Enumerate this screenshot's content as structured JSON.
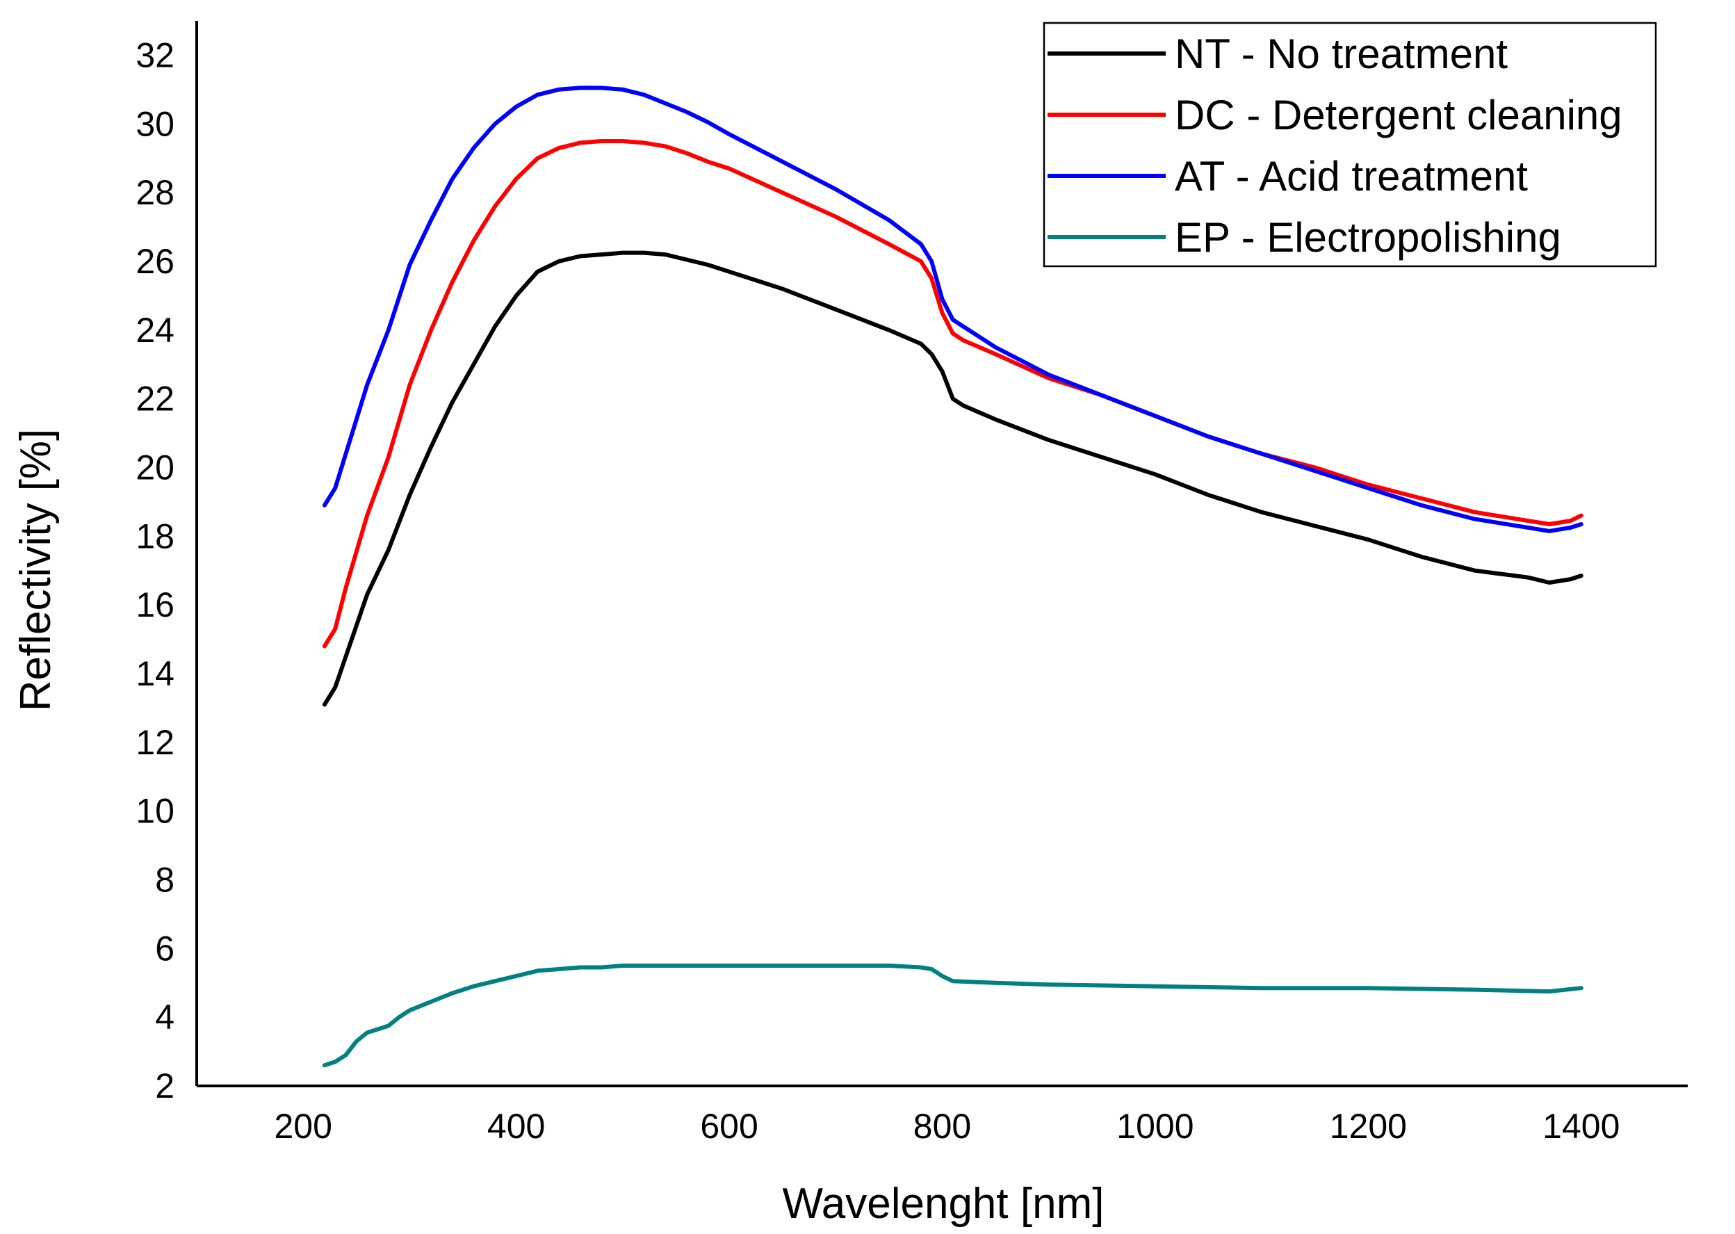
{
  "chart_data": {
    "type": "line",
    "title": "",
    "xlabel": "Wavelenght [nm]",
    "ylabel": "Reflectivity [%]",
    "xlim": [
      100,
      1500
    ],
    "ylim": [
      2,
      33
    ],
    "xticks": [
      200,
      400,
      600,
      800,
      1000,
      1200,
      1400
    ],
    "yticks": [
      2,
      4,
      6,
      8,
      10,
      12,
      14,
      16,
      18,
      20,
      22,
      24,
      26,
      28,
      30,
      32
    ],
    "grid": false,
    "legend_position": "top-right",
    "series": [
      {
        "name": "NT - No treatment",
        "color": "#000000",
        "x": [
          220,
          230,
          240,
          260,
          280,
          300,
          320,
          340,
          360,
          380,
          400,
          420,
          440,
          460,
          480,
          500,
          520,
          540,
          560,
          580,
          600,
          650,
          700,
          750,
          780,
          790,
          800,
          810,
          820,
          850,
          900,
          950,
          1000,
          1050,
          1100,
          1150,
          1200,
          1250,
          1300,
          1350,
          1370,
          1390,
          1400
        ],
        "values": [
          13.1,
          13.6,
          14.5,
          16.3,
          17.6,
          19.2,
          20.6,
          21.9,
          23.0,
          24.1,
          25.0,
          25.7,
          26.0,
          26.15,
          26.2,
          26.25,
          26.25,
          26.2,
          26.05,
          25.9,
          25.7,
          25.2,
          24.6,
          24.0,
          23.6,
          23.3,
          22.8,
          22.0,
          21.8,
          21.4,
          20.8,
          20.3,
          19.8,
          19.2,
          18.7,
          18.3,
          17.9,
          17.4,
          17.0,
          16.8,
          16.65,
          16.75,
          16.85
        ]
      },
      {
        "name": "DC - Detergent cleaning",
        "color": "#ff0000",
        "x": [
          220,
          230,
          240,
          260,
          280,
          300,
          320,
          340,
          360,
          380,
          400,
          420,
          440,
          460,
          480,
          500,
          520,
          540,
          560,
          580,
          600,
          650,
          700,
          750,
          780,
          790,
          800,
          810,
          820,
          850,
          900,
          950,
          1000,
          1050,
          1100,
          1150,
          1200,
          1250,
          1300,
          1350,
          1370,
          1390,
          1400
        ],
        "values": [
          14.8,
          15.3,
          16.5,
          18.6,
          20.3,
          22.4,
          24.0,
          25.4,
          26.6,
          27.6,
          28.4,
          29.0,
          29.3,
          29.45,
          29.5,
          29.5,
          29.45,
          29.35,
          29.15,
          28.9,
          28.7,
          28.0,
          27.3,
          26.5,
          26.0,
          25.5,
          24.5,
          23.9,
          23.7,
          23.3,
          22.6,
          22.1,
          21.5,
          20.9,
          20.4,
          20.0,
          19.5,
          19.1,
          18.7,
          18.45,
          18.35,
          18.45,
          18.6
        ]
      },
      {
        "name": "AT - Acid treatment",
        "color": "#0000ff",
        "x": [
          220,
          230,
          240,
          260,
          280,
          300,
          320,
          340,
          360,
          380,
          400,
          420,
          440,
          460,
          480,
          500,
          520,
          540,
          560,
          580,
          600,
          650,
          700,
          750,
          780,
          790,
          800,
          810,
          820,
          850,
          900,
          950,
          1000,
          1050,
          1100,
          1150,
          1200,
          1250,
          1300,
          1350,
          1370,
          1390,
          1400
        ],
        "values": [
          18.9,
          19.4,
          20.4,
          22.4,
          24.0,
          25.9,
          27.2,
          28.4,
          29.3,
          30.0,
          30.5,
          30.85,
          31.0,
          31.05,
          31.05,
          31.0,
          30.85,
          30.6,
          30.35,
          30.05,
          29.7,
          28.9,
          28.1,
          27.2,
          26.5,
          26.0,
          24.9,
          24.3,
          24.1,
          23.5,
          22.7,
          22.1,
          21.5,
          20.9,
          20.4,
          19.9,
          19.4,
          18.9,
          18.5,
          18.25,
          18.15,
          18.25,
          18.35
        ]
      },
      {
        "name": "EP - Electropolishing",
        "color": "#008080",
        "x": [
          220,
          230,
          240,
          250,
          260,
          270,
          280,
          290,
          300,
          320,
          340,
          360,
          380,
          400,
          420,
          440,
          460,
          480,
          500,
          520,
          550,
          600,
          650,
          700,
          750,
          780,
          790,
          800,
          810,
          850,
          900,
          1000,
          1100,
          1200,
          1300,
          1370,
          1400
        ],
        "values": [
          2.6,
          2.7,
          2.9,
          3.3,
          3.55,
          3.65,
          3.75,
          4.0,
          4.2,
          4.45,
          4.7,
          4.9,
          5.05,
          5.2,
          5.35,
          5.4,
          5.45,
          5.45,
          5.5,
          5.5,
          5.5,
          5.5,
          5.5,
          5.5,
          5.5,
          5.45,
          5.4,
          5.2,
          5.05,
          5.0,
          4.95,
          4.9,
          4.85,
          4.85,
          4.8,
          4.75,
          4.85
        ]
      }
    ]
  }
}
